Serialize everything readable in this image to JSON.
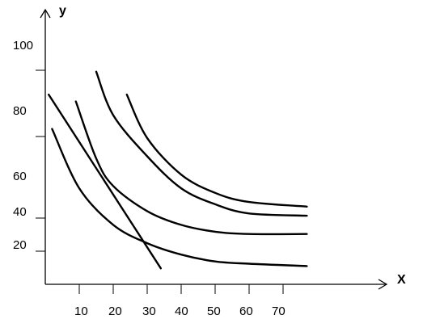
{
  "chart_data": {
    "type": "line",
    "title": "",
    "xlabel": "X",
    "ylabel": "y",
    "x_ticks": [
      "10",
      "20",
      "30",
      "40",
      "50",
      "60",
      "70"
    ],
    "y_ticks": [
      "100",
      "80",
      "60",
      "40",
      "20"
    ],
    "grid": false,
    "legend": "none",
    "series": [
      {
        "points": [
          [
            1,
            83
          ],
          [
            34,
            7
          ]
        ]
      },
      {
        "points": [
          [
            2,
            68
          ],
          [
            10,
            42
          ],
          [
            20,
            26
          ],
          [
            30,
            18
          ],
          [
            40,
            13
          ],
          [
            50,
            10
          ],
          [
            60,
            9
          ],
          [
            77,
            8
          ]
        ]
      },
      {
        "points": [
          [
            9,
            80
          ],
          [
            15,
            55
          ],
          [
            20,
            43
          ],
          [
            30,
            32
          ],
          [
            40,
            26
          ],
          [
            50,
            23
          ],
          [
            60,
            22
          ],
          [
            77,
            22
          ]
        ]
      },
      {
        "points": [
          [
            15,
            93
          ],
          [
            20,
            74
          ],
          [
            30,
            56
          ],
          [
            40,
            42
          ],
          [
            50,
            35
          ],
          [
            60,
            31
          ],
          [
            77,
            30
          ]
        ]
      },
      {
        "points": [
          [
            24,
            83
          ],
          [
            30,
            64
          ],
          [
            40,
            48
          ],
          [
            50,
            40
          ],
          [
            60,
            36
          ],
          [
            77,
            34
          ]
        ]
      }
    ]
  }
}
